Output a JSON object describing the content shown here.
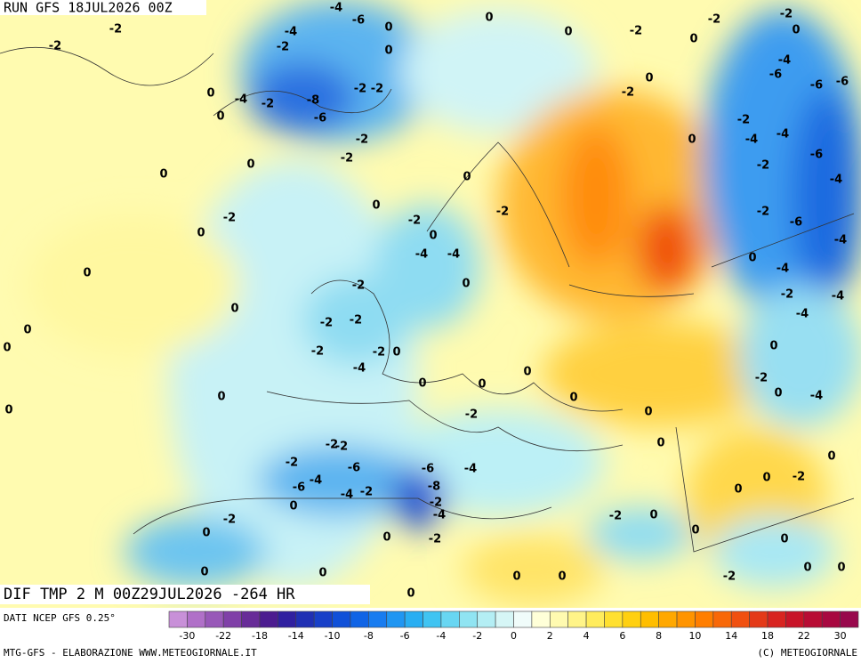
{
  "header": {
    "run": "RUN GFS 18JUL2026 00Z",
    "field": "DIF TMP 2 M 00Z29JUL2026 -264 HR"
  },
  "map": {
    "labels": [
      -2,
      -2,
      -4,
      -6,
      -4,
      -2,
      0,
      0,
      0,
      -4,
      -2,
      -8,
      -2,
      -2,
      0,
      -6,
      -2,
      -2,
      0,
      0,
      -2,
      0,
      0,
      0,
      0,
      0,
      0,
      0,
      0,
      0,
      0,
      -2,
      0,
      -2,
      -2,
      0,
      0,
      -2,
      -4,
      -6,
      -6,
      -6,
      -2,
      -4,
      -4,
      0,
      -2,
      -6,
      -4,
      0,
      -2,
      -2,
      0,
      -4,
      -4,
      0,
      -2,
      -2,
      -6,
      -4,
      0,
      -4,
      -2,
      -4,
      -4,
      -2,
      -2,
      -2,
      -2,
      0,
      -4,
      0,
      0,
      0,
      0,
      -2,
      0,
      -4,
      0,
      -2,
      0,
      0,
      -2,
      -2,
      -6,
      -6,
      -4,
      -2,
      -4,
      -6,
      -4,
      -2,
      -8,
      -2,
      -4,
      0,
      0,
      0,
      -2,
      0,
      -2,
      0,
      -2,
      0,
      -2,
      0,
      0,
      0,
      0,
      0,
      0,
      0,
      -2,
      0,
      0,
      0
    ]
  },
  "legend": {
    "colors": [
      "#c890d8",
      "#b070c8",
      "#9858b8",
      "#8040a8",
      "#682c98",
      "#4c1c90",
      "#3020a0",
      "#2030b4",
      "#1840c8",
      "#1050d8",
      "#1064e6",
      "#187cf0",
      "#2096f2",
      "#28aef2",
      "#40c4f2",
      "#68d6f2",
      "#90e4f2",
      "#b4eef4",
      "#d6f6f6",
      "#f0fcfa",
      "#ffffd8",
      "#fffab0",
      "#fff488",
      "#ffec5c",
      "#ffe030",
      "#ffd010",
      "#ffbe00",
      "#ffa800",
      "#ff9400",
      "#ff7e00",
      "#f86808",
      "#f05010",
      "#e43a18",
      "#d82420",
      "#c81428",
      "#b80c34",
      "#a80840",
      "#98084c"
    ],
    "ticks": [
      -30,
      -22,
      -18,
      -14,
      -10,
      -8,
      -6,
      -4,
      -2,
      0,
      2,
      4,
      6,
      8,
      10,
      14,
      18,
      22,
      30
    ]
  },
  "footer": {
    "source": "DATI NCEP GFS 0.25°",
    "credit": "MTG-GFS - ELABORAZIONE WWW.METEOGIORNALE.IT",
    "copyright": "(C) METEOGIORNALE"
  }
}
